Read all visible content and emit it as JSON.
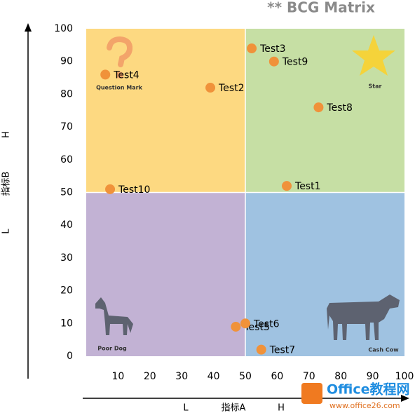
{
  "chart_data": {
    "type": "scatter",
    "title": "** BCG Matrix",
    "x_label": "指标A",
    "y_label": "指标B",
    "x_level_labels": [
      "L",
      "H"
    ],
    "y_level_labels": [
      "L",
      "H"
    ],
    "labels": [
      "Test1",
      "Test2",
      "Test3",
      "Test4",
      "Test5",
      "Test6",
      "Test7",
      "Test8",
      "Test9",
      "Test10"
    ],
    "x": [
      63,
      39,
      52,
      6,
      47,
      50,
      55,
      73,
      59,
      7.5
    ],
    "values": [
      52,
      82,
      94,
      86,
      9,
      10,
      2,
      76,
      90,
      51
    ],
    "color": "#f0923a",
    "xlim": [
      0,
      100
    ],
    "ylim": [
      0,
      100
    ],
    "xticks": [
      10,
      20,
      30,
      40,
      50,
      60,
      70,
      80,
      90,
      100
    ],
    "yticks": [
      0,
      10,
      20,
      30,
      40,
      50,
      60,
      70,
      80,
      90,
      100
    ],
    "divider": {
      "x": 50,
      "y": 50
    },
    "quadrants": [
      {
        "label": "Question Mark",
        "color": "#fdd981"
      },
      {
        "label": "Star",
        "color": "#c6dfa4"
      },
      {
        "label": "Poor Dog",
        "color": "#c2b2d4"
      },
      {
        "label": "Cash Cow",
        "color": "#9fc2e1"
      }
    ]
  },
  "watermark": {
    "name": "Office教程网",
    "url": "www.office26.com"
  }
}
